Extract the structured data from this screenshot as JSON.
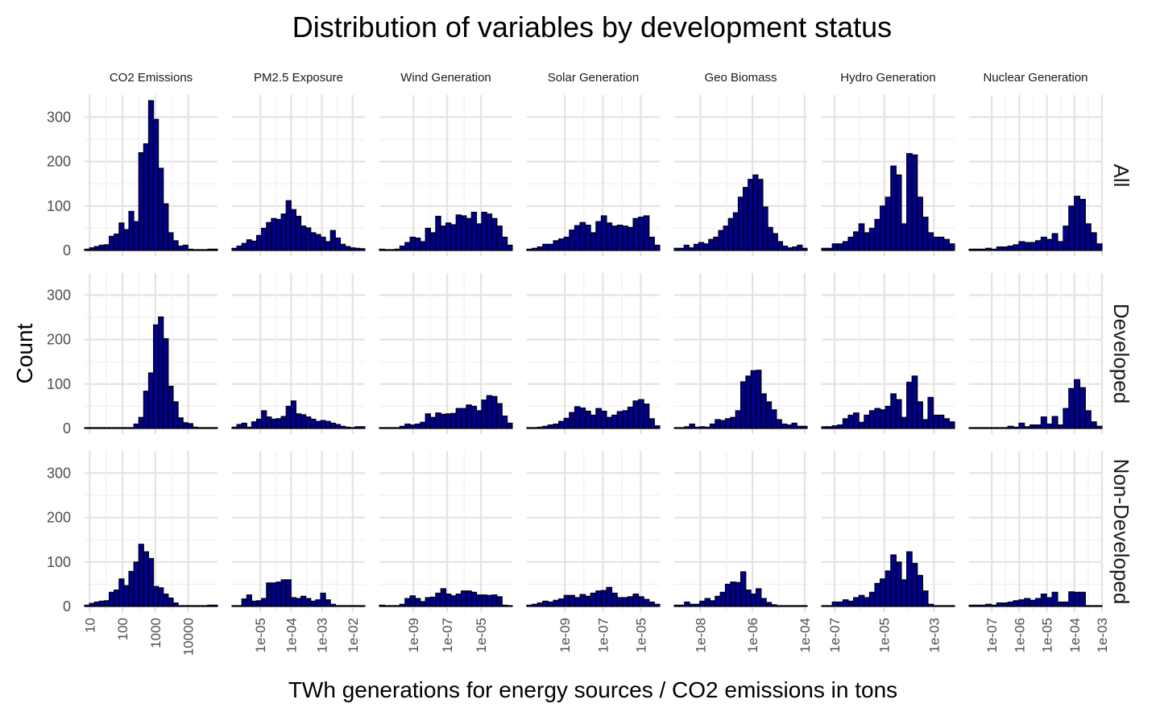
{
  "chart_data": {
    "type": "bar",
    "title": "Distribution of variables by development status",
    "xlabel": "TWh generations for energy sources / CO2 emissions in tons",
    "ylabel": "Count",
    "ylim": [
      0,
      350
    ],
    "y_ticks": [
      "0",
      "100",
      "200",
      "300"
    ],
    "grid": true,
    "bar_fill": "#00008B",
    "bar_stroke": "#000000",
    "rows": [
      "All",
      "Developed",
      "Non-Developed"
    ],
    "columns": [
      {
        "label": "CO2 Emissions",
        "scale": "log10",
        "xlim": [
          7,
          78000
        ],
        "ticks": [
          {
            "value": 10,
            "label": "10"
          },
          {
            "value": 100,
            "label": "100"
          },
          {
            "value": 1000,
            "label": "1000"
          },
          {
            "value": 10000,
            "label": "10000"
          }
        ],
        "counts": [
          [
            3,
            6,
            9,
            12,
            13,
            32,
            37,
            62,
            47,
            88,
            65,
            220,
            240,
            337,
            295,
            185,
            105,
            40,
            22,
            10,
            12,
            3,
            2,
            2,
            2,
            3,
            3
          ],
          [
            2,
            2,
            2,
            2,
            2,
            2,
            2,
            2,
            2,
            2,
            10,
            25,
            84,
            125,
            233,
            251,
            202,
            95,
            60,
            24,
            13,
            11,
            3,
            2,
            2,
            2,
            2
          ],
          [
            3,
            7,
            10,
            12,
            13,
            32,
            37,
            62,
            47,
            79,
            100,
            140,
            123,
            108,
            45,
            42,
            28,
            19,
            8,
            2,
            2,
            2,
            2,
            2,
            2,
            3,
            3
          ]
        ]
      },
      {
        "label": "PM2.5 Exposure",
        "scale": "log10",
        "xlim": [
          1.2e-06,
          0.025
        ],
        "ticks": [
          {
            "value": 1e-05,
            "label": "1e-05"
          },
          {
            "value": 0.0001,
            "label": "1e-04"
          },
          {
            "value": 0.001,
            "label": "1e-03"
          },
          {
            "value": 0.01,
            "label": "1e-02"
          }
        ],
        "counts": [
          [
            5,
            10,
            16,
            24,
            21,
            34,
            50,
            63,
            72,
            70,
            82,
            112,
            92,
            77,
            55,
            51,
            40,
            36,
            30,
            20,
            45,
            28,
            14,
            9,
            6,
            5,
            4
          ],
          [
            3,
            9,
            12,
            3,
            15,
            21,
            40,
            26,
            21,
            22,
            27,
            50,
            62,
            33,
            31,
            26,
            21,
            16,
            18,
            16,
            12,
            9,
            5,
            3,
            2,
            4,
            4
          ],
          [
            2,
            2,
            17,
            26,
            12,
            13,
            18,
            53,
            53,
            55,
            60,
            60,
            20,
            18,
            23,
            18,
            12,
            15,
            30,
            15,
            5,
            2,
            2,
            2,
            2,
            2,
            2
          ]
        ]
      },
      {
        "label": "Wind Generation",
        "scale": "log10",
        "xlim": [
          1e-11,
          0.0007
        ],
        "ticks": [
          {
            "value": 1e-09,
            "label": "1e-09"
          },
          {
            "value": 1e-07,
            "label": "1e-07"
          },
          {
            "value": 1e-05,
            "label": "1e-05"
          }
        ],
        "counts": [
          [
            3,
            2,
            2,
            3,
            10,
            18,
            30,
            28,
            20,
            50,
            40,
            77,
            55,
            62,
            58,
            80,
            78,
            72,
            86,
            60,
            86,
            82,
            72,
            55,
            30,
            12
          ],
          [
            2,
            2,
            2,
            2,
            5,
            10,
            8,
            10,
            14,
            33,
            25,
            35,
            32,
            33,
            34,
            45,
            45,
            53,
            50,
            40,
            64,
            74,
            72,
            56,
            28,
            12
          ],
          [
            3,
            2,
            2,
            2,
            5,
            18,
            24,
            18,
            11,
            20,
            21,
            30,
            40,
            28,
            24,
            28,
            35,
            35,
            32,
            26,
            26,
            25,
            26,
            22,
            3,
            2
          ]
        ]
      },
      {
        "label": "Solar Generation",
        "scale": "log10",
        "xlim": [
          1e-11,
          0.0001
        ],
        "ticks": [
          {
            "value": 1e-09,
            "label": "1e-09"
          },
          {
            "value": 1e-07,
            "label": "1e-07"
          },
          {
            "value": 1e-05,
            "label": "1e-05"
          }
        ],
        "counts": [
          [
            3,
            5,
            8,
            14,
            14,
            22,
            26,
            30,
            46,
            56,
            63,
            57,
            40,
            65,
            78,
            62,
            55,
            57,
            55,
            52,
            72,
            75,
            78,
            30,
            12
          ],
          [
            2,
            2,
            3,
            5,
            8,
            10,
            16,
            23,
            36,
            49,
            46,
            39,
            30,
            45,
            39,
            25,
            30,
            38,
            40,
            48,
            62,
            65,
            55,
            22,
            6
          ],
          [
            3,
            5,
            8,
            12,
            10,
            14,
            17,
            25,
            25,
            20,
            27,
            23,
            30,
            35,
            36,
            43,
            30,
            20,
            20,
            22,
            28,
            22,
            16,
            10,
            5
          ]
        ]
      },
      {
        "label": "Geo Biomass",
        "scale": "log10",
        "xlim": [
          1e-09,
          0.000125
        ],
        "ticks": [
          {
            "value": 1e-08,
            "label": "1e-08"
          },
          {
            "value": 1e-06,
            "label": "1e-06"
          },
          {
            "value": 0.0001,
            "label": "1e-04"
          }
        ],
        "counts": [
          [
            5,
            5,
            12,
            6,
            14,
            18,
            15,
            25,
            30,
            45,
            55,
            72,
            85,
            120,
            142,
            160,
            170,
            160,
            98,
            52,
            38,
            20,
            10,
            6,
            8,
            12,
            5
          ],
          [
            2,
            2,
            4,
            10,
            3,
            4,
            3,
            10,
            20,
            18,
            22,
            25,
            40,
            105,
            118,
            130,
            131,
            78,
            60,
            42,
            20,
            10,
            8,
            12,
            5,
            5
          ],
          [
            3,
            3,
            10,
            5,
            5,
            12,
            18,
            13,
            23,
            32,
            50,
            55,
            54,
            78,
            37,
            28,
            40,
            18,
            9,
            4,
            2,
            2,
            2,
            2,
            2,
            2
          ]
        ]
      },
      {
        "label": "Hydro Generation",
        "scale": "log10",
        "xlim": [
          3e-08,
          0.0068
        ],
        "ticks": [
          {
            "value": 1e-07,
            "label": "1e-07"
          },
          {
            "value": 1e-05,
            "label": "1e-05"
          },
          {
            "value": 0.001,
            "label": "1e-03"
          }
        ],
        "counts": [
          [
            5,
            5,
            15,
            15,
            20,
            30,
            42,
            60,
            40,
            50,
            70,
            100,
            120,
            190,
            170,
            60,
            218,
            215,
            120,
            75,
            40,
            30,
            30,
            25,
            15
          ],
          [
            4,
            4,
            6,
            8,
            22,
            30,
            35,
            14,
            30,
            40,
            45,
            42,
            50,
            78,
            65,
            25,
            104,
            118,
            60,
            20,
            70,
            30,
            30,
            22,
            15
          ],
          [
            2,
            2,
            10,
            10,
            15,
            12,
            20,
            25,
            20,
            32,
            52,
            62,
            80,
            116,
            100,
            60,
            123,
            97,
            70,
            35,
            5,
            2,
            2,
            2,
            2
          ]
        ]
      },
      {
        "label": "Nuclear Generation",
        "scale": "log10",
        "xlim": [
          1.5e-08,
          0.001
        ],
        "ticks": [
          {
            "value": 1e-07,
            "label": "1e-07"
          },
          {
            "value": 1e-06,
            "label": "1e-06"
          },
          {
            "value": 1e-05,
            "label": "1e-05"
          },
          {
            "value": 0.0001,
            "label": "1e-04"
          },
          {
            "value": 0.001,
            "label": "1e-03"
          }
        ],
        "counts": [
          [
            3,
            3,
            3,
            5,
            3,
            8,
            8,
            10,
            13,
            20,
            18,
            18,
            22,
            30,
            25,
            38,
            20,
            55,
            100,
            122,
            115,
            60,
            40,
            15
          ],
          [
            2,
            2,
            2,
            2,
            2,
            2,
            2,
            5,
            3,
            12,
            4,
            8,
            8,
            26,
            10,
            27,
            8,
            45,
            90,
            110,
            92,
            40,
            15,
            5
          ],
          [
            3,
            3,
            3,
            5,
            3,
            8,
            8,
            10,
            13,
            15,
            18,
            14,
            18,
            28,
            20,
            32,
            10,
            10,
            33,
            32,
            32,
            2,
            2,
            2
          ]
        ]
      }
    ]
  }
}
